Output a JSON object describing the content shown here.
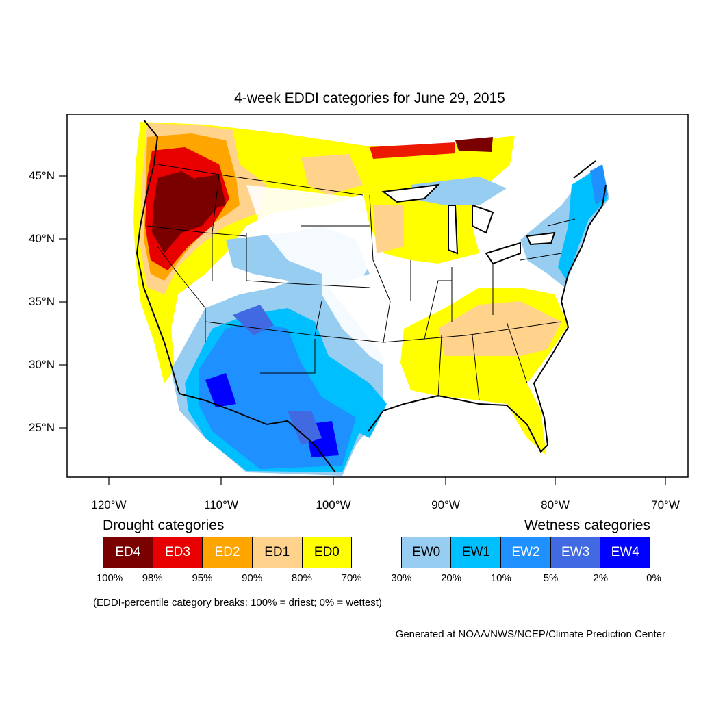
{
  "title": "4-week EDDI categories for June 29, 2015",
  "lat_labels": [
    "45°N",
    "40°N",
    "35°N",
    "30°N",
    "25°N"
  ],
  "lon_labels": [
    "120°W",
    "110°W",
    "100°W",
    "90°W",
    "80°W",
    "70°W"
  ],
  "legend": {
    "drought_heading": "Drought categories",
    "wetness_heading": "Wetness categories",
    "categories": [
      {
        "label": "ED4",
        "color": "#7a0000",
        "text_color": "#ffffff"
      },
      {
        "label": "ED3",
        "color": "#e80000",
        "text_color": "#ffffff"
      },
      {
        "label": "ED2",
        "color": "#ffa500",
        "text_color": "#ffffff"
      },
      {
        "label": "ED1",
        "color": "#ffd38c",
        "text_color": "#000000"
      },
      {
        "label": "ED0",
        "color": "#ffff00",
        "text_color": "#000000"
      },
      {
        "label": "",
        "color": "#ffffff",
        "text_color": "#000000"
      },
      {
        "label": "EW0",
        "color": "#96cdf0",
        "text_color": "#000000"
      },
      {
        "label": "EW1",
        "color": "#00bfff",
        "text_color": "#000000"
      },
      {
        "label": "EW2",
        "color": "#1e90ff",
        "text_color": "#ffffff"
      },
      {
        "label": "EW3",
        "color": "#4169e1",
        "text_color": "#ffffff"
      },
      {
        "label": "EW4",
        "color": "#0000ff",
        "text_color": "#ffffff"
      }
    ],
    "percentiles": [
      "100%",
      "98%",
      "95%",
      "90%",
      "80%",
      "70%",
      "30%",
      "20%",
      "10%",
      "5%",
      "2%",
      "0%"
    ]
  },
  "note": "(EDDI-percentile category breaks: 100% = driest; 0% = wettest)",
  "credit": "Generated at NOAA/NWS/NCEP/Climate Prediction Center"
}
